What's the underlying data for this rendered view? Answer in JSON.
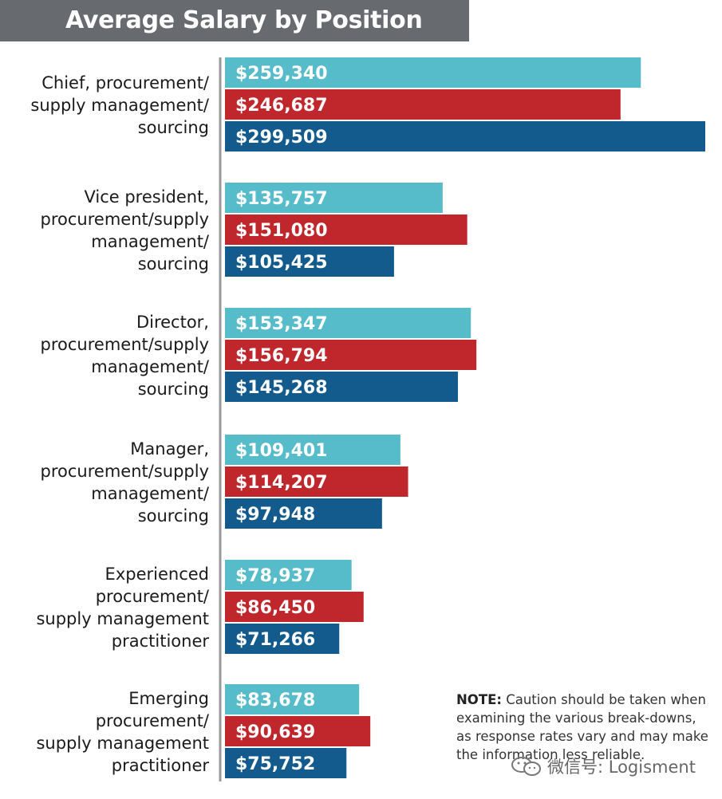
{
  "chart_data": {
    "type": "bar",
    "orientation": "horizontal",
    "title": "Average Salary by Position",
    "categories": [
      [
        "Chief, procurement/",
        "supply management/",
        "sourcing"
      ],
      [
        "Vice president,",
        "procurement/supply",
        "management/",
        "sourcing"
      ],
      [
        "Director,",
        "procurement/supply",
        "management/",
        "sourcing"
      ],
      [
        "Manager,",
        "procurement/supply",
        "management/",
        "sourcing"
      ],
      [
        "Experienced",
        "procurement/",
        "supply management",
        "practitioner"
      ],
      [
        "Emerging",
        "procurement/",
        "supply management",
        "practitioner"
      ]
    ],
    "series": [
      {
        "color": "#56bcc9",
        "values": [
          259340,
          135757,
          153347,
          109401,
          78937,
          83678
        ],
        "labels": [
          "$259,340",
          "$135,757",
          "$153,347",
          "$109,401",
          "$78,937",
          "$83,678"
        ]
      },
      {
        "color": "#c0272d",
        "values": [
          246687,
          151080,
          156794,
          114207,
          86450,
          90639
        ],
        "labels": [
          "$246,687",
          "$151,080",
          "$156,794",
          "$114,207",
          "$86,450",
          "$90,639"
        ]
      },
      {
        "color": "#125b8c",
        "values": [
          299509,
          105425,
          145268,
          97948,
          71266,
          75752
        ],
        "labels": [
          "$299,509",
          "$105,425",
          "$145,268",
          "$97,948",
          "$71,266",
          "$75,752"
        ]
      }
    ],
    "xlim": [
      0,
      299509
    ],
    "grid": false,
    "legend": "none"
  },
  "note": {
    "label": "NOTE:",
    "text": " Caution should be taken when examining the various break-downs, as response rates vary and may make the information less reliable."
  },
  "watermark": {
    "text": "微信号: Logisment",
    "icon": "wechat-icon"
  }
}
